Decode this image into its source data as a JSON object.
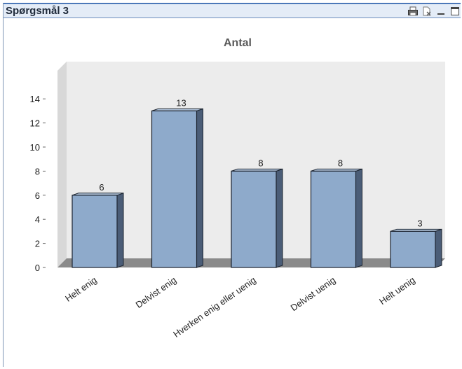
{
  "window": {
    "title": "Spørgsmål 3",
    "icons": [
      "print-icon",
      "clear-selection-icon",
      "minimize-icon",
      "maximize-icon"
    ]
  },
  "chart_data": {
    "type": "bar",
    "title": "Antal",
    "categories": [
      "Helt enig",
      "Delvist enig",
      "Hverken enig eller uenig",
      "Delvist uenig",
      "Helt uenig"
    ],
    "values": [
      6,
      13,
      8,
      8,
      3
    ],
    "ylim": [
      0,
      14
    ],
    "yticks": [
      0,
      2,
      4,
      6,
      8,
      10,
      12,
      14
    ],
    "grid": false,
    "colors": {
      "bar_front": "#8eaacb",
      "bar_side": "#4b5d77",
      "bar_top": "#b3c6dd",
      "wall": "#ececec",
      "floor": "#8a8a8a"
    }
  }
}
